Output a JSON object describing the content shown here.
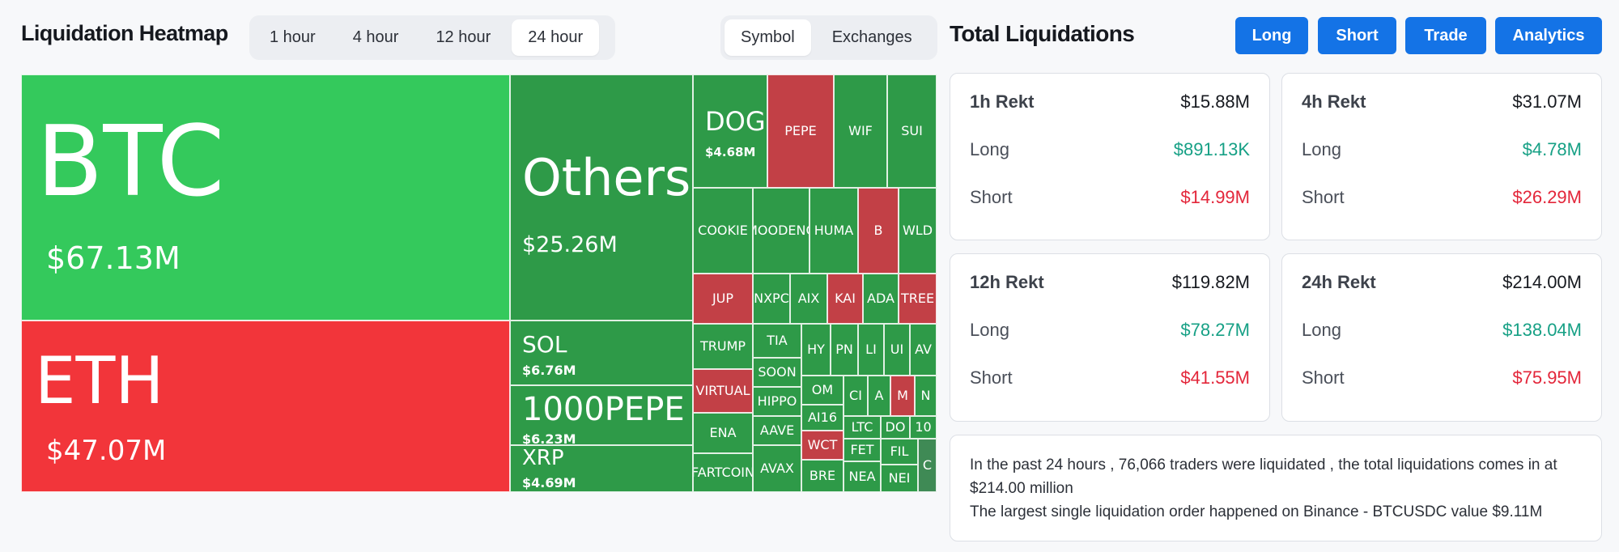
{
  "heatmap": {
    "title": "Liquidation Heatmap",
    "time_options": [
      "1 hour",
      "4 hour",
      "12 hour",
      "24 hour"
    ],
    "time_selected": "24 hour",
    "view_options": [
      "Symbol",
      "Exchanges"
    ],
    "view_selected": "Symbol",
    "tiles": {
      "btc": {
        "symbol": "BTC",
        "value": "$67.13M"
      },
      "eth": {
        "symbol": "ETH",
        "value": "$47.07M"
      },
      "others": {
        "symbol": "Others",
        "value": "$25.26M"
      },
      "sol": {
        "symbol": "SOL",
        "value": "$6.76M"
      },
      "pepe1000": {
        "symbol": "1000PEPE",
        "value": "$6.23M"
      },
      "xrp": {
        "symbol": "XRP",
        "value": "$4.69M"
      },
      "doge": {
        "symbol": "DOGE",
        "value": "$4.68M"
      },
      "pepe": {
        "symbol": "PEPE"
      },
      "wif": {
        "symbol": "WIF"
      },
      "sui": {
        "symbol": "SUI"
      },
      "cookie": {
        "symbol": "COOKIE"
      },
      "moodeng": {
        "symbol": "MOODENG"
      },
      "huma": {
        "symbol": "HUMA"
      },
      "b": {
        "symbol": "B"
      },
      "wld": {
        "symbol": "WLD"
      },
      "jup": {
        "symbol": "JUP"
      },
      "nxpc": {
        "symbol": "NXPC"
      },
      "aixbt": {
        "symbol": "AIX"
      },
      "kaito": {
        "symbol": "KAI"
      },
      "ada": {
        "symbol": "ADA"
      },
      "tree": {
        "symbol": "TREE"
      },
      "trump": {
        "symbol": "TRUMP"
      },
      "tia": {
        "symbol": "TIA"
      },
      "hype": {
        "symbol": "HY"
      },
      "pnut": {
        "symbol": "PN"
      },
      "link": {
        "symbol": "LI"
      },
      "uni": {
        "symbol": "UI"
      },
      "avax2": {
        "symbol": "AV"
      },
      "virtual": {
        "symbol": "VIRTUAL"
      },
      "soon": {
        "symbol": "SOON"
      },
      "om": {
        "symbol": "OM"
      },
      "crv": {
        "symbol": "CI"
      },
      "a": {
        "symbol": "A"
      },
      "m": {
        "symbol": "M"
      },
      "n": {
        "symbol": "N"
      },
      "hippo": {
        "symbol": "HIPPO"
      },
      "ai16z": {
        "symbol": "AI16"
      },
      "ltc": {
        "symbol": "LTC"
      },
      "dot": {
        "symbol": "DO"
      },
      "ten": {
        "symbol": "10"
      },
      "ena": {
        "symbol": "ENA"
      },
      "aave": {
        "symbol": "AAVE"
      },
      "wct": {
        "symbol": "WCT"
      },
      "fet": {
        "symbol": "FET"
      },
      "fil": {
        "symbol": "FIL"
      },
      "c": {
        "symbol": "C"
      },
      "fartcoin": {
        "symbol": "FARTCOIN"
      },
      "avax": {
        "symbol": "AVAX"
      },
      "bre": {
        "symbol": "BRE"
      },
      "near": {
        "symbol": "NEA"
      },
      "nei": {
        "symbol": "NEI"
      }
    }
  },
  "totals": {
    "title": "Total Liquidations",
    "buttons": [
      "Long",
      "Short",
      "Trade",
      "Analytics"
    ],
    "cards": [
      {
        "period": "1h Rekt",
        "total": "$15.88M",
        "long_label": "Long",
        "long": "$891.13K",
        "short_label": "Short",
        "short": "$14.99M"
      },
      {
        "period": "4h Rekt",
        "total": "$31.07M",
        "long_label": "Long",
        "long": "$4.78M",
        "short_label": "Short",
        "short": "$26.29M"
      },
      {
        "period": "12h Rekt",
        "total": "$119.82M",
        "long_label": "Long",
        "long": "$78.27M",
        "short_label": "Short",
        "short": "$41.55M"
      },
      {
        "period": "24h Rekt",
        "total": "$214.00M",
        "long_label": "Long",
        "long": "$138.04M",
        "short_label": "Short",
        "short": "$75.95M"
      }
    ],
    "summary_line1": "In the past 24 hours , 76,066 traders were liquidated , the total liquidations comes in at $214.00 million",
    "summary_line2": "The largest single liquidation order happened on Binance - BTCUSDC value $9.11M"
  },
  "colors": {
    "long_green": "#16a085",
    "short_red": "#e3263a",
    "button_blue": "#1473e6",
    "tile_green_bright": "#34c95c",
    "tile_green_dark": "#2e9a48",
    "tile_red_bright": "#f2353a",
    "tile_red_dark": "#c24046"
  }
}
